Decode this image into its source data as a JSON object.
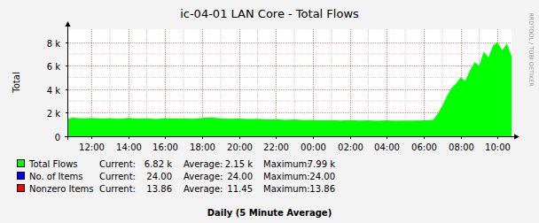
{
  "chart_data": {
    "type": "area",
    "title": "ic-04-01 LAN Core - Total Flows",
    "y_label": "Total",
    "footer": "Daily (5 Minute Average)",
    "watermark": "RRDTOOL / TOBI OETIKER",
    "grid": true,
    "xlim": [
      10.75,
      34.75
    ],
    "xticks": [
      {
        "value": 12,
        "label": "12:00"
      },
      {
        "value": 14,
        "label": "14:00"
      },
      {
        "value": 16,
        "label": "16:00"
      },
      {
        "value": 18,
        "label": "18:00"
      },
      {
        "value": 20,
        "label": "20:00"
      },
      {
        "value": 22,
        "label": "22:00"
      },
      {
        "value": 24,
        "label": "00:00"
      },
      {
        "value": 26,
        "label": "02:00"
      },
      {
        "value": 28,
        "label": "04:00"
      },
      {
        "value": 30,
        "label": "06:00"
      },
      {
        "value": 32,
        "label": "08:00"
      },
      {
        "value": 34,
        "label": "10:00"
      }
    ],
    "ylim": [
      0,
      9100
    ],
    "yticks": [
      0,
      {
        "value": 2000,
        "label": "2 k"
      },
      {
        "value": 4000,
        "label": "4 k"
      },
      {
        "value": 6000,
        "label": "6 k"
      },
      {
        "value": 8000,
        "label": "8 k"
      }
    ],
    "stat_labels": [
      "Current:",
      "Average:",
      "Maximum:"
    ],
    "series": [
      {
        "name": "Total Flows",
        "color": "#00ff00",
        "current": "6.82 k",
        "average": "2.15 k",
        "maximum": "7.99 k",
        "x": [
          10.75,
          11,
          11.5,
          12,
          12.5,
          13,
          13.5,
          14,
          14.5,
          15,
          15.5,
          16,
          16.5,
          17,
          17.5,
          18,
          18.5,
          19,
          19.5,
          20,
          20.5,
          21,
          21.5,
          22,
          22.5,
          23,
          23.5,
          24,
          24.5,
          25,
          25.5,
          26,
          26.5,
          27,
          27.5,
          28,
          28.5,
          29,
          29.5,
          30,
          30.5,
          30.75,
          31,
          31.25,
          31.5,
          31.75,
          32,
          32.25,
          32.5,
          32.75,
          33,
          33.25,
          33.5,
          33.75,
          34,
          34.25,
          34.5,
          34.75
        ],
        "values": [
          1500,
          1580,
          1520,
          1560,
          1500,
          1540,
          1480,
          1560,
          1500,
          1530,
          1470,
          1540,
          1500,
          1520,
          1480,
          1560,
          1600,
          1520,
          1480,
          1500,
          1460,
          1480,
          1420,
          1440,
          1400,
          1430,
          1380,
          1400,
          1360,
          1380,
          1340,
          1370,
          1330,
          1350,
          1320,
          1350,
          1310,
          1340,
          1330,
          1360,
          1400,
          1900,
          2600,
          3400,
          4100,
          4500,
          5000,
          4700,
          5600,
          6300,
          6000,
          7200,
          6700,
          7700,
          7990,
          7300,
          7900,
          6820
        ]
      }
    ],
    "legend_items": [
      {
        "name": "No. of Items",
        "color": "#0000ff",
        "current": "24.00",
        "average": "24.00",
        "maximum": "24.00"
      },
      {
        "name": "Nonzero Items",
        "color": "#ff0000",
        "current": "13.86",
        "average": "11.45",
        "maximum": "13.86"
      }
    ]
  }
}
